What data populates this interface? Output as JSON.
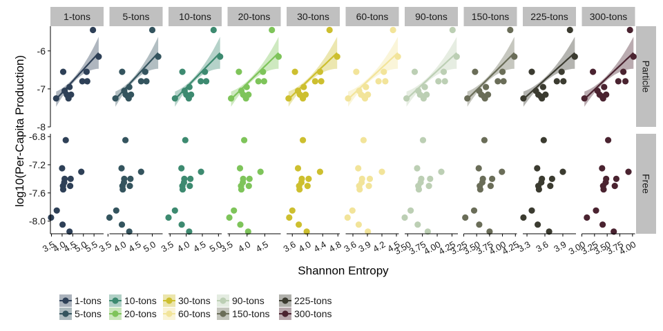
{
  "chart_data": {
    "type": "scatter",
    "xlabel": "Shannon Entropy",
    "ylabel": "log10(Per-Capita Production)",
    "rows": [
      "Particle",
      "Free"
    ],
    "legend_placement": "bottom",
    "panel_background": "#ffffff",
    "strip_color": "#c0c0c0",
    "grid": false,
    "y_axes": {
      "Particle": {
        "ylim": [
          -8.0,
          -5.35
        ],
        "ticks": [
          -6,
          -7,
          -8
        ],
        "tick_labels": [
          "-6",
          "-7",
          "-8"
        ]
      },
      "Free": {
        "ylim": [
          -8.18,
          -6.76
        ],
        "ticks": [
          -6.8,
          -7.2,
          -7.6,
          -8.0
        ],
        "tick_labels": [
          "-6.8",
          "-7.2",
          "-7.6",
          "-8.0"
        ]
      }
    },
    "panels": [
      {
        "name": "1-tons",
        "color": "#2e4057",
        "xlim": [
          3.45,
          5.95
        ],
        "xticks": [
          3.5,
          4.0,
          4.5,
          5.0,
          5.5
        ],
        "xtick_labels": [
          "3.5",
          "4.0",
          "4.5",
          "5.0",
          "5.5"
        ],
        "particle_x": [
          3.72,
          4.05,
          4.12,
          4.22,
          4.28,
          4.3,
          4.35,
          4.42,
          4.95,
          5.15,
          5.18,
          5.45,
          5.72
        ],
        "free_x": [
          3.48,
          3.75,
          4.0,
          4.02,
          4.04,
          4.05,
          4.1,
          4.12,
          4.17,
          4.35,
          4.38,
          4.4,
          4.9
        ]
      },
      {
        "name": "5-tons",
        "color": "#34545e",
        "xlim": [
          3.55,
          5.35
        ],
        "xticks": [
          3.5,
          4.0,
          4.5,
          5.0
        ],
        "xtick_labels": [
          "3.5",
          "4.0",
          "4.5",
          "5.0"
        ],
        "particle_x": [
          3.75,
          3.98,
          4.05,
          4.1,
          4.17,
          4.2,
          4.22,
          4.28,
          4.62,
          4.76,
          4.8,
          5.0,
          5.2
        ],
        "free_x": [
          3.55,
          3.78,
          3.96,
          3.97,
          3.99,
          4.0,
          4.04,
          4.05,
          4.09,
          4.22,
          4.24,
          4.26,
          4.62
        ]
      },
      {
        "name": "10-tons",
        "color": "#3d8a70",
        "xlim": [
          3.45,
          5.1
        ],
        "xticks": [
          3.5,
          4.0,
          4.5,
          5.0
        ],
        "xtick_labels": [
          "3.5",
          "4.0",
          "4.5",
          "5.0"
        ],
        "particle_x": [
          3.65,
          3.88,
          3.95,
          4.0,
          4.06,
          4.08,
          4.1,
          4.15,
          4.45,
          4.58,
          4.62,
          4.85,
          5.05
        ],
        "free_x": [
          3.45,
          3.65,
          3.85,
          3.86,
          3.88,
          3.89,
          3.93,
          3.94,
          3.97,
          4.09,
          4.11,
          4.13,
          4.46
        ]
      },
      {
        "name": "20-tons",
        "color": "#7ec45a",
        "xlim": [
          3.45,
          4.95
        ],
        "xticks": [
          3.5,
          4.0,
          4.5
        ],
        "xtick_labels": [
          "3.5",
          "4.0",
          "4.5"
        ],
        "particle_x": [
          3.55,
          3.77,
          3.84,
          3.89,
          3.95,
          3.97,
          3.99,
          4.04,
          4.32,
          4.45,
          4.48,
          4.7,
          4.89
        ],
        "free_x": [
          3.5,
          3.63,
          3.8,
          3.81,
          3.83,
          3.84,
          3.88,
          3.89,
          3.92,
          4.03,
          4.05,
          4.07,
          4.38
        ]
      },
      {
        "name": "30-tons",
        "color": "#cdbf2f",
        "xlim": [
          3.45,
          4.85
        ],
        "xticks": [
          3.6,
          4.0,
          4.4,
          4.8
        ],
        "xtick_labels": [
          "3.6",
          "4.0",
          "4.4",
          "4.8"
        ],
        "particle_x": [
          3.5,
          3.67,
          3.75,
          3.8,
          3.86,
          3.88,
          3.9,
          3.95,
          4.2,
          4.33,
          4.36,
          4.58,
          4.78
        ],
        "free_x": [
          3.52,
          3.6,
          3.75,
          3.77,
          3.78,
          3.79,
          3.84,
          3.85,
          3.88,
          3.98,
          4.0,
          4.03,
          4.33
        ]
      },
      {
        "name": "60-tons",
        "color": "#f2e49a",
        "xlim": [
          3.45,
          4.55
        ],
        "xticks": [
          3.6,
          3.9,
          4.2,
          4.5
        ],
        "xtick_labels": [
          "3.6",
          "3.9",
          "4.2",
          "4.5"
        ],
        "particle_x": [
          3.5,
          3.67,
          3.73,
          3.77,
          3.83,
          3.85,
          3.87,
          3.91,
          4.13,
          4.24,
          4.27,
          4.43,
          4.53
        ],
        "free_x": [
          3.49,
          3.59,
          3.71,
          3.72,
          3.73,
          3.74,
          3.78,
          3.79,
          3.82,
          3.91,
          3.93,
          3.95,
          4.2
        ]
      },
      {
        "name": "90-tons",
        "color": "#bccfb4",
        "xlim": [
          3.45,
          4.35
        ],
        "xticks": [
          3.5,
          3.75,
          4.0,
          4.25
        ],
        "xtick_labels": [
          "3.50",
          "3.75",
          "4.00",
          "4.25"
        ],
        "particle_x": [
          3.48,
          3.62,
          3.68,
          3.71,
          3.76,
          3.77,
          3.79,
          3.82,
          4.02,
          4.11,
          4.13,
          4.26,
          4.33
        ],
        "free_x": [
          3.45,
          3.55,
          3.66,
          3.67,
          3.68,
          3.69,
          3.72,
          3.73,
          3.76,
          3.84,
          3.86,
          3.88,
          4.07
        ]
      },
      {
        "name": "150-tons",
        "color": "#6a6d58",
        "xlim": [
          3.25,
          4.28
        ],
        "xticks": [
          3.25,
          3.5,
          3.75,
          4.0,
          4.25
        ],
        "xtick_labels": [
          "3.25",
          "3.50",
          "3.75",
          "4.00",
          "4.25"
        ],
        "particle_x": [
          3.32,
          3.47,
          3.55,
          3.59,
          3.64,
          3.66,
          3.68,
          3.72,
          3.91,
          4.0,
          4.02,
          4.15,
          4.23
        ],
        "free_x": [
          3.28,
          3.45,
          3.54,
          3.55,
          3.56,
          3.57,
          3.61,
          3.62,
          3.65,
          3.75,
          3.77,
          3.8,
          3.99
        ]
      },
      {
        "name": "225-tons",
        "color": "#3b3b30",
        "xlim": [
          3.23,
          4.12
        ],
        "xticks": [
          3.3,
          3.6,
          3.9
        ],
        "xtick_labels": [
          "3.3",
          "3.6",
          "3.9"
        ],
        "particle_x": [
          3.24,
          3.38,
          3.45,
          3.49,
          3.53,
          3.55,
          3.57,
          3.61,
          3.8,
          3.88,
          3.91,
          4.02,
          4.1
        ],
        "free_x": [
          3.24,
          3.38,
          3.47,
          3.48,
          3.49,
          3.5,
          3.54,
          3.55,
          3.58,
          3.67,
          3.69,
          3.72,
          3.9
        ]
      },
      {
        "name": "300-tons",
        "color": "#4a2330",
        "xlim": [
          3.0,
          4.05
        ],
        "xticks": [
          3.0,
          3.25,
          3.5,
          3.75,
          4.0
        ],
        "xtick_labels": [
          "3.00",
          "3.25",
          "3.50",
          "3.75",
          "4.00"
        ],
        "particle_x": [
          3.05,
          3.22,
          3.31,
          3.35,
          3.4,
          3.42,
          3.44,
          3.48,
          3.72,
          3.82,
          3.86,
          3.95,
          4.02
        ],
        "free_x": [
          3.1,
          3.28,
          3.4,
          3.41,
          3.42,
          3.43,
          3.47,
          3.48,
          3.52,
          3.63,
          3.65,
          3.68,
          3.92
        ]
      }
    ],
    "particle_y": [
      -7.25,
      -6.55,
      -7.05,
      -7.15,
      -7.2,
      -7.25,
      -6.95,
      -7.15,
      -6.8,
      -6.55,
      -6.8,
      -5.45,
      -6.15
    ],
    "free_y": [
      -7.95,
      -7.85,
      -7.25,
      -8.05,
      -7.5,
      -7.55,
      -7.45,
      -7.4,
      -6.85,
      -8.15,
      -7.5,
      -7.4,
      -7.3
    ],
    "fits": [
      {
        "row": "Particle",
        "x_start": "min",
        "x_end": "max",
        "y_start": -7.27,
        "y_end": -6.05,
        "band_start": 0.2,
        "band_mid": 0.07,
        "band_end": 0.42
      }
    ],
    "legend": [
      "1-tons",
      "5-tons",
      "10-tons",
      "20-tons",
      "30-tons",
      "60-tons",
      "90-tons",
      "150-tons",
      "225-tons",
      "300-tons"
    ]
  }
}
